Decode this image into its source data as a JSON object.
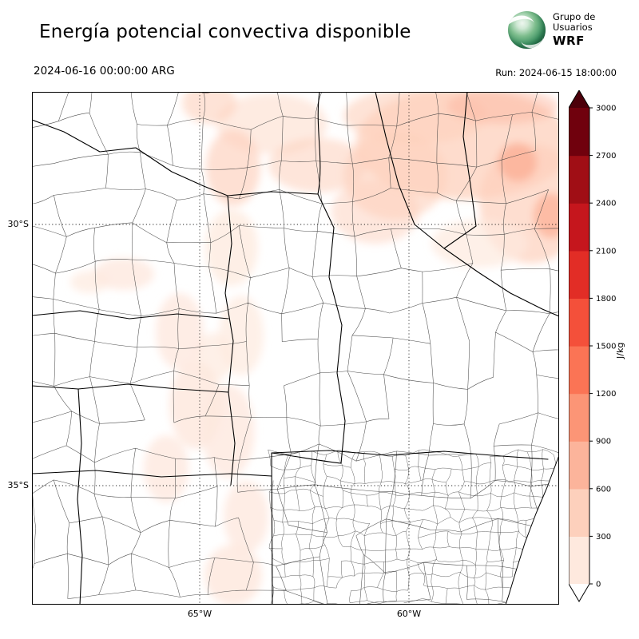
{
  "header": {
    "title": "Energía potencial convectiva disponible",
    "valid_time": "2024-06-16 00:00:00 ARG",
    "run_label": "Run: 2024-06-15 18:00:00",
    "logo": {
      "line1": "Grupo de",
      "line2": "Usuarios",
      "line3": "WRF"
    }
  },
  "map": {
    "y_ticks": [
      "30°S",
      "35°S"
    ],
    "x_ticks": [
      "65°W",
      "60°W"
    ]
  },
  "chart_data": {
    "type": "heatmap",
    "title": "Energía potencial convectiva disponible",
    "variable": "CAPE (convective available potential energy)",
    "units": "J/kg",
    "valid_time": "2024-06-16 00:00:00 ARG",
    "run_time": "2024-06-15 18:00:00",
    "x_ticks": [
      "65°W",
      "60°W"
    ],
    "y_ticks": [
      "30°S",
      "35°S"
    ],
    "grid": "dotted latitude/longitude gridlines at 30°S, 35°S, 65°W, 60°W",
    "basemap": "province and department boundaries of central-northern Argentina",
    "colorbar": {
      "label": "J/kg",
      "levels": [
        0,
        300,
        600,
        900,
        1200,
        1500,
        1800,
        2100,
        2400,
        2700,
        3000
      ],
      "colors": [
        "#fee9de",
        "#fdd0bc",
        "#fcb49b",
        "#fc9576",
        "#fb7455",
        "#f4503a",
        "#e22d26",
        "#c5161d",
        "#a00e15",
        "#70010d"
      ],
      "under_color": "#ffffff",
      "over_color": "#4c000a"
    },
    "shaded_regions": [
      {
        "region": "north and northeast of domain",
        "approx_value_jkg": "100-600"
      },
      {
        "region": "small cores in far northeast",
        "approx_value_jkg": "600-900"
      },
      {
        "region": "central and west-central strips",
        "approx_value_jkg": "0-300"
      },
      {
        "region": "south and southeast including Buenos Aires province",
        "approx_value_jkg": "0"
      }
    ]
  }
}
